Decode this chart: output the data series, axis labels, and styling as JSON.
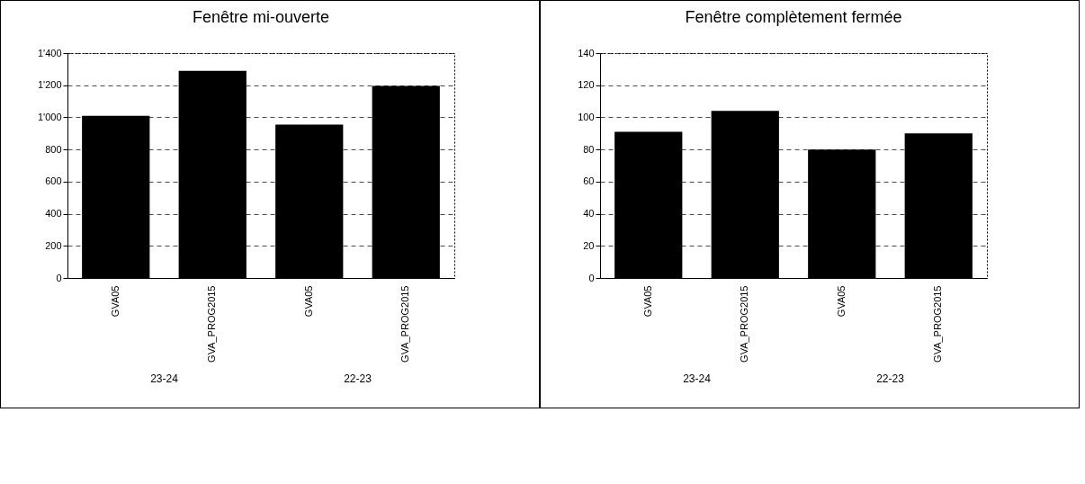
{
  "chart_data": [
    {
      "type": "bar",
      "title": "Fenêtre mi-ouverte",
      "categories": [
        "GVA05",
        "GVA_PROG2015",
        "GVA05",
        "GVA_PROG2015"
      ],
      "values": [
        1010,
        1290,
        955,
        1195
      ],
      "color": "#000000",
      "ylim": [
        0,
        1400
      ],
      "yticks": [
        0,
        200,
        400,
        600,
        800,
        {
          "value": 1000,
          "label": "1'000"
        },
        {
          "value": 1200,
          "label": "1'200"
        },
        {
          "value": 1400,
          "label": "1'400"
        }
      ],
      "grid": "y",
      "annotations": [
        "23-24",
        "22-23"
      ]
    },
    {
      "type": "bar",
      "title": "Fenêtre complètement fermée",
      "categories": [
        "GVA05",
        "GVA_PROG2015",
        "GVA05",
        "GVA_PROG2015"
      ],
      "values": [
        91,
        104,
        80,
        90
      ],
      "color": "#000000",
      "ylim": [
        0,
        140
      ],
      "yticks": [
        0,
        20,
        40,
        60,
        80,
        100,
        120,
        140
      ],
      "grid": "y",
      "annotations": [
        "23-24",
        "22-23"
      ]
    }
  ]
}
